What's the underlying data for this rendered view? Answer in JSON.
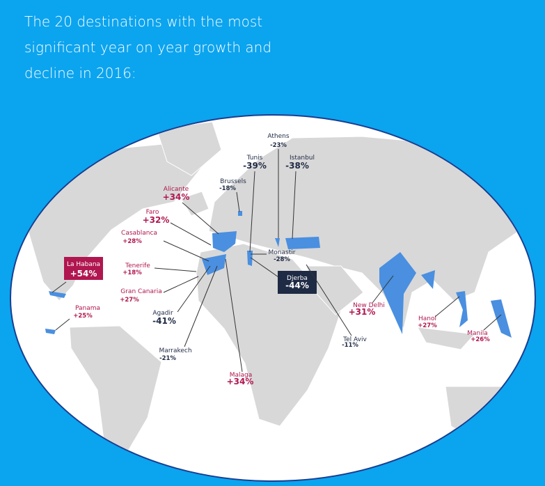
{
  "title": "The 20 destinations with the most significant year on year growth and decline in 2016:",
  "destinations": [
    {
      "name": "Athens",
      "change": "-23%"
    },
    {
      "name": "Tunis",
      "change": "-39%"
    },
    {
      "name": "Istanbul",
      "change": "-38%"
    },
    {
      "name": "Brussels",
      "change": "-18%"
    },
    {
      "name": "Alicante",
      "change": "+34%"
    },
    {
      "name": "Faro",
      "change": "+32%"
    },
    {
      "name": "Casablanca",
      "change": "+28%"
    },
    {
      "name": "Monastir",
      "change": "-28%"
    },
    {
      "name": "La Habana",
      "change": "+54%"
    },
    {
      "name": "Tenerife",
      "change": "+18%"
    },
    {
      "name": "Djerba",
      "change": "-44%"
    },
    {
      "name": "Gran Canaria",
      "change": "+27%"
    },
    {
      "name": "Panama",
      "change": "+25%"
    },
    {
      "name": "Agadir",
      "change": "-41%"
    },
    {
      "name": "New Delhi",
      "change": "+31%"
    },
    {
      "name": "Hanoi",
      "change": "+27%"
    },
    {
      "name": "Tel Aviv",
      "change": "-11%"
    },
    {
      "name": "Manila",
      "change": "+26%"
    },
    {
      "name": "Marrakech",
      "change": "-21%"
    },
    {
      "name": "Malaga",
      "change": "+34%"
    }
  ]
}
